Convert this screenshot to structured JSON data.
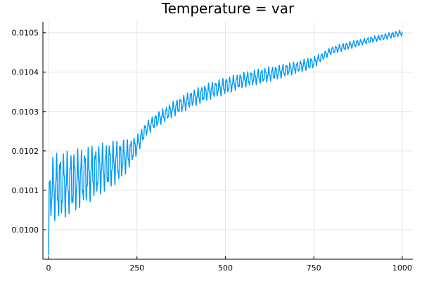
{
  "chart_data": {
    "type": "line",
    "title": "Temperature = var",
    "xlabel": "",
    "ylabel": "",
    "xlim": [
      -16,
      1030
    ],
    "ylim": [
      0.009925,
      0.010528
    ],
    "xticks": [
      0,
      250,
      500,
      750,
      1000
    ],
    "xtick_labels": [
      "0",
      "250",
      "500",
      "750",
      "1000"
    ],
    "yticks": [
      0.01,
      0.0101,
      0.0102,
      0.0103,
      0.0104,
      0.0105
    ],
    "ytick_labels": [
      "0.0100",
      "0.0101",
      "0.0102",
      "0.0103",
      "0.0104",
      "0.0105"
    ],
    "grid": true,
    "legend": "none",
    "series": [
      {
        "color": "#009af9",
        "x": [
          0,
          10,
          25,
          50,
          75,
          100,
          125,
          150,
          175,
          200,
          225,
          250,
          275,
          300,
          350,
          400,
          450,
          500,
          550,
          600,
          650,
          700,
          750,
          775,
          800,
          850,
          900,
          950,
          1000
        ],
        "center": [
          0.01008,
          0.010105,
          0.01011,
          0.010115,
          0.010125,
          0.010135,
          0.010145,
          0.010155,
          0.010165,
          0.010175,
          0.01019,
          0.010215,
          0.010255,
          0.010275,
          0.010305,
          0.01033,
          0.01035,
          0.010365,
          0.01038,
          0.01039,
          0.0104,
          0.010412,
          0.010425,
          0.01044,
          0.010455,
          0.010468,
          0.01048,
          0.01049,
          0.0105
        ],
        "amplitude": [
          5e-05,
          8e-05,
          9e-05,
          8.5e-05,
          8e-05,
          7.5e-05,
          7e-05,
          6.5e-05,
          6e-05,
          5.5e-05,
          4e-05,
          2.5e-05,
          1.8e-05,
          1.8e-05,
          2e-05,
          2.2e-05,
          2.2e-05,
          2.2e-05,
          2e-05,
          2e-05,
          1.8e-05,
          1.6e-05,
          1.5e-05,
          1e-05,
          1e-05,
          1e-05,
          8e-06,
          8e-06,
          8e-06
        ],
        "period": 10,
        "start_value": 0.009935
      }
    ]
  }
}
